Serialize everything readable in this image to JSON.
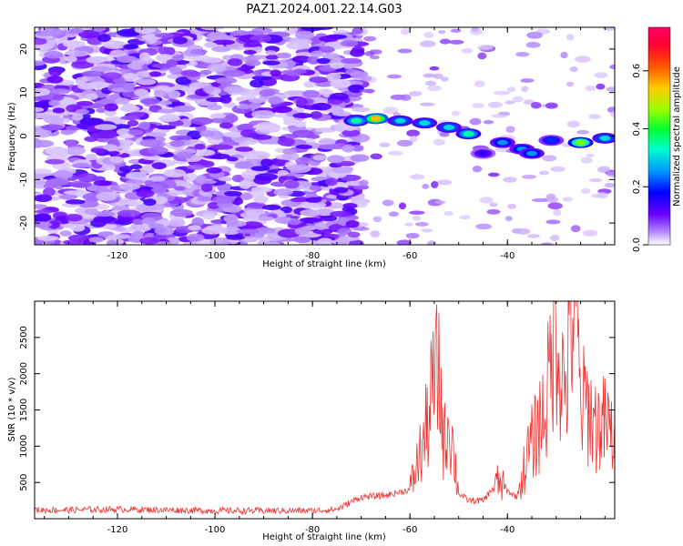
{
  "title": "PAZ1.2024.001.22.14.G03",
  "chart_data": [
    {
      "type": "heatmap",
      "xlabel": "Height of straight line (km)",
      "ylabel": "Frequency (Hz)",
      "xlim": [
        -137,
        -18
      ],
      "ylim": [
        -25,
        25
      ],
      "x_ticks": [
        -120,
        -100,
        -80,
        -60,
        -40
      ],
      "y_ticks": [
        -20,
        -10,
        0,
        10,
        20
      ],
      "colorbar": {
        "label": "Normalized spectral amplitude",
        "range": [
          0.0,
          0.75
        ],
        "ticks": [
          0.0,
          0.2,
          0.4,
          0.6
        ],
        "colormap": "gist_rainbow (white at low values)"
      },
      "ridge": {
        "description_points": [
          {
            "x": -71,
            "y": 3.5,
            "amp": 0.35
          },
          {
            "x": -67,
            "y": 4.0,
            "amp": 0.55
          },
          {
            "x": -62,
            "y": 3.5,
            "amp": 0.3
          },
          {
            "x": -57,
            "y": 3.0,
            "amp": 0.3
          },
          {
            "x": -52,
            "y": 2.0,
            "amp": 0.3
          },
          {
            "x": -48,
            "y": 0.5,
            "amp": 0.35
          },
          {
            "x": -45,
            "y": -4.0,
            "amp": 0.15
          },
          {
            "x": -41,
            "y": -1.5,
            "amp": 0.25
          },
          {
            "x": -37,
            "y": -3.0,
            "amp": 0.25
          },
          {
            "x": -35,
            "y": -4.0,
            "amp": 0.25
          },
          {
            "x": -31,
            "y": -1.0,
            "amp": 0.2
          },
          {
            "x": -25,
            "y": -1.5,
            "amp": 0.45
          },
          {
            "x": -20,
            "y": -0.5,
            "amp": 0.3
          }
        ]
      }
    },
    {
      "type": "line",
      "xlabel": "Height of straight line (km)",
      "ylabel": "SNR (10 * v/v)",
      "xlim": [
        -137,
        -18
      ],
      "ylim": [
        0,
        3000
      ],
      "x_ticks": [
        -120,
        -100,
        -80,
        -60,
        -40
      ],
      "y_ticks": [
        500,
        1000,
        1500,
        2000,
        2500
      ],
      "color": "#ee3333",
      "series": [
        {
          "x": [
            -137,
            -130,
            -120,
            -110,
            -100,
            -90,
            -80,
            -75,
            -70,
            -65,
            -60,
            -57,
            -55,
            -54,
            -53,
            -52,
            -50,
            -48,
            -45,
            -42,
            -40,
            -38,
            -36,
            -34,
            -32,
            -30,
            -29,
            -28,
            -27,
            -26,
            -25,
            -24,
            -22,
            -20,
            -18
          ],
          "y": [
            120,
            120,
            130,
            120,
            110,
            110,
            110,
            130,
            300,
            320,
            400,
            1100,
            1900,
            2000,
            1000,
            1400,
            350,
            250,
            250,
            500,
            380,
            300,
            850,
            1200,
            1600,
            2800,
            2000,
            1800,
            2700,
            3000,
            1500,
            1600,
            1300,
            1300,
            1100
          ]
        }
      ]
    }
  ]
}
